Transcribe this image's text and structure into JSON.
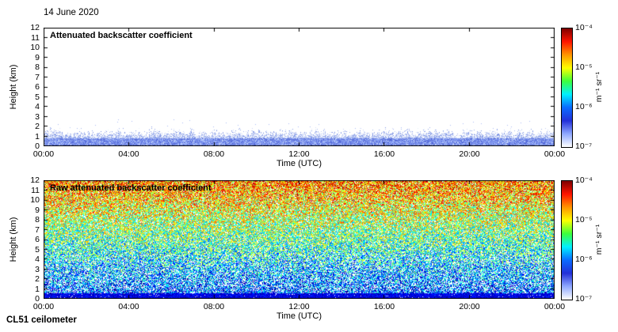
{
  "figure": {
    "date": "14 June 2020",
    "footer": "CL51 ceilometer"
  },
  "chart_data": [
    {
      "type": "heatmap",
      "title": "Attenuated backscatter coefficient",
      "xlabel": "Time (UTC)",
      "ylabel": "Height (km)",
      "x_ticks": [
        "00:00",
        "04:00",
        "08:00",
        "12:00",
        "16:00",
        "20:00",
        "00:00"
      ],
      "x_range_hours": [
        0,
        24
      ],
      "y_ticks": [
        12,
        11,
        10,
        9,
        8,
        7,
        6,
        5,
        4,
        3,
        2,
        1,
        0
      ],
      "y_range_km": [
        0,
        12
      ],
      "grid": false,
      "colorbar": {
        "label": "m⁻¹ sr⁻¹",
        "scale": "log",
        "tick_labels": [
          "10⁻⁴",
          "10⁻⁵",
          "10⁻⁶",
          "10⁻⁷"
        ],
        "range_min": 1e-07,
        "range_max": 0.0001,
        "position": "right",
        "colors_top_to_bottom": [
          "#7f0000",
          "#ff1400",
          "#ff9500",
          "#fdff00",
          "#3cff3c",
          "#00f0ff",
          "#0a6bff",
          "#2330d8",
          "#8fa8ff",
          "#ffffff"
        ]
      },
      "pattern": {
        "mode": "boundary-layer",
        "seed": 12345,
        "solid_top_km": 0.8,
        "speckle_top_km_min": 1.1,
        "speckle_top_km_max": 2.3,
        "description": "White background; blue aerosol backscatter speckle confined below about 2 km with a nearly solid blue boundary layer below about 0.8 km; spiky column-to-column top edge"
      }
    },
    {
      "type": "heatmap",
      "title": "Raw attenuated backscatter coefficient",
      "xlabel": "Time (UTC)",
      "ylabel": "Height (km)",
      "x_ticks": [
        "00:00",
        "04:00",
        "08:00",
        "12:00",
        "16:00",
        "20:00",
        "00:00"
      ],
      "x_range_hours": [
        0,
        24
      ],
      "y_ticks": [
        12,
        11,
        10,
        9,
        8,
        7,
        6,
        5,
        4,
        3,
        2,
        1,
        0
      ],
      "y_range_km": [
        0,
        12
      ],
      "grid": false,
      "colorbar": {
        "label": "m⁻¹ sr⁻¹",
        "scale": "log",
        "tick_labels": [
          "10⁻⁴",
          "10⁻⁵",
          "10⁻⁶",
          "10⁻⁷"
        ],
        "range_min": 1e-07,
        "range_max": 0.0001,
        "position": "right",
        "colors_top_to_bottom": [
          "#7f0000",
          "#ff1400",
          "#ff9500",
          "#fdff00",
          "#3cff3c",
          "#00f0ff",
          "#0a6bff",
          "#2330d8",
          "#8fa8ff",
          "#ffffff"
        ]
      },
      "pattern": {
        "mode": "full-noise",
        "seed": 77421,
        "description": "Dense multicolor instrument noise over the full height range; apparent values increase with height from dark blue near the surface to green and yellow speckle aloft, with scattered white gaps mostly at low and mid levels"
      }
    }
  ]
}
